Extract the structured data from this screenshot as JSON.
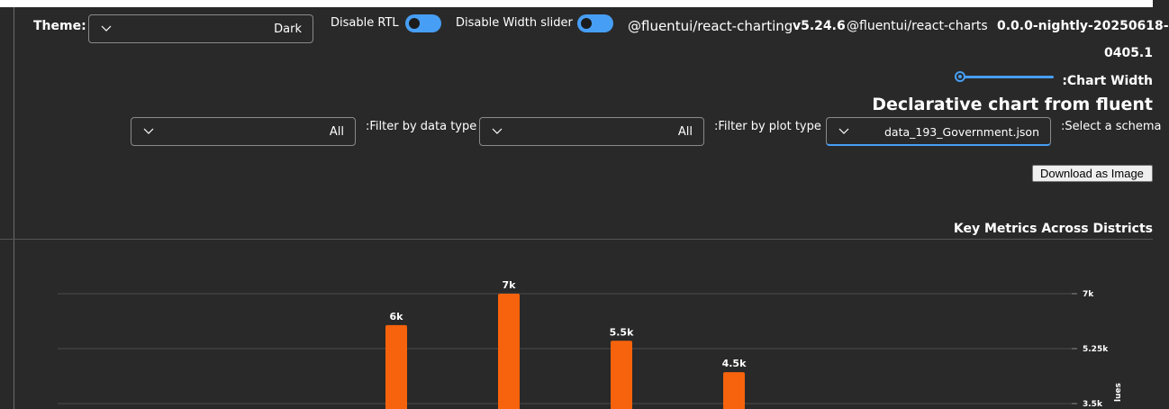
{
  "header": {
    "theme_label": "Theme:",
    "theme_value": "Dark",
    "disable_rtl_label": "Disable RTL",
    "disable_width_label": "Disable Width slider",
    "pkg1_name": "@fluentui/react-charting",
    "pkg1_version": "v5.24.6",
    "pkg2_name": "@fluentui/react-charts",
    "pkg2_version_line1": "0.0.0-nightly-20250618-",
    "pkg2_version_line2": "0405.1",
    "chart_width_label": ":Chart Width"
  },
  "page": {
    "title": "Declarative chart from fluent"
  },
  "filters": {
    "data_type_label": ":Filter by data type",
    "data_type_value": "All",
    "plot_type_label": ":Filter by plot type",
    "plot_type_value": "All",
    "schema_label": ":Select a schema",
    "schema_value": "data_193_Government.json"
  },
  "actions": {
    "download_label": "Download as Image"
  },
  "chart_data": {
    "type": "bar",
    "title": "Key Metrics Across Districts",
    "ylabel": "lues",
    "y_ticks": [
      "7k",
      "5.25k",
      "3.5k"
    ],
    "y_tick_values": [
      7000,
      5250,
      3500
    ],
    "ylim": [
      3500,
      7000
    ],
    "bar_color": "#f7630c",
    "bars": [
      {
        "label": "6k",
        "value": 6000
      },
      {
        "label": "7k",
        "value": 7000
      },
      {
        "label": "5.5k",
        "value": 5500
      },
      {
        "label": "4.5k",
        "value": 4500
      }
    ]
  },
  "colors": {
    "background": "#292929",
    "accent": "#479ef5",
    "bar": "#f7630c"
  }
}
